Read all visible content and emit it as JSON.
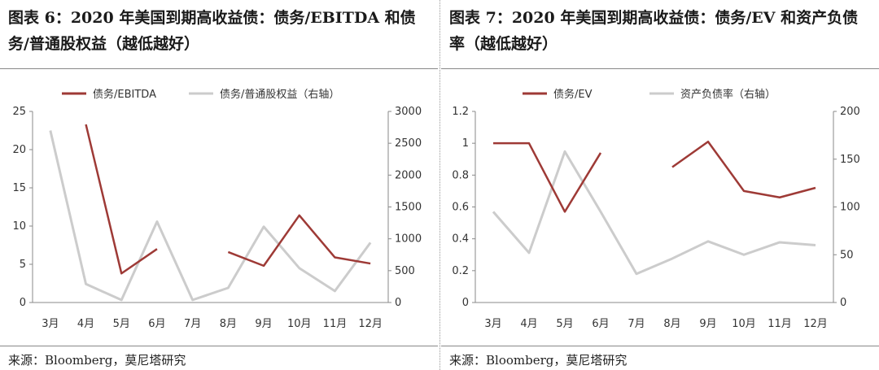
{
  "left": {
    "title": "图表 6：2020 年美国到期高收益债：债务/EBITDA 和债务/普通股权益（越低越好）",
    "source": "来源：Bloomberg，莫尼塔研究",
    "chart_data": {
      "type": "line",
      "categories": [
        "3月",
        "4月",
        "5月",
        "6月",
        "7月",
        "8月",
        "9月",
        "10月",
        "11月",
        "12月"
      ],
      "series": [
        {
          "name": "债务/EBITDA",
          "axis": "left",
          "color": "#9e3a36",
          "values": [
            null,
            23.3,
            3.8,
            7.0,
            null,
            6.6,
            4.8,
            11.4,
            5.9,
            5.1
          ]
        },
        {
          "name": "债务/普通股权益（右轴）",
          "axis": "right",
          "color": "#cccccc",
          "values": [
            2700,
            290,
            40,
            1270,
            40,
            230,
            1190,
            540,
            180,
            940
          ]
        }
      ],
      "ylim": [
        0,
        25
      ],
      "yticks": [
        0,
        5,
        10,
        15,
        20,
        25
      ],
      "y2lim": [
        0,
        3000
      ],
      "y2ticks": [
        0,
        500,
        1000,
        1500,
        2000,
        2500,
        3000
      ],
      "legend": "top"
    }
  },
  "right": {
    "title": "图表 7：2020 年美国到期高收益债：债务/EV 和资产负债率（越低越好）",
    "source": "来源：Bloomberg，莫尼塔研究",
    "chart_data": {
      "type": "line",
      "categories": [
        "3月",
        "4月",
        "5月",
        "6月",
        "7月",
        "8月",
        "9月",
        "10月",
        "11月",
        "12月"
      ],
      "series": [
        {
          "name": "债务/EV",
          "axis": "left",
          "color": "#9e3a36",
          "values": [
            1.0,
            1.0,
            0.57,
            0.94,
            null,
            0.85,
            1.01,
            0.7,
            0.66,
            0.72
          ]
        },
        {
          "name": "资产负债率（右轴）",
          "axis": "right",
          "color": "#cccccc",
          "values": [
            95,
            52,
            158,
            95,
            30,
            46,
            64,
            50,
            63,
            60
          ]
        }
      ],
      "ylim": [
        0,
        1.2
      ],
      "yticks": [
        0,
        0.2,
        0.4,
        0.6,
        0.8,
        1,
        1.2
      ],
      "y2lim": [
        0,
        200
      ],
      "y2ticks": [
        0,
        50,
        100,
        150,
        200
      ],
      "legend": "top"
    }
  }
}
